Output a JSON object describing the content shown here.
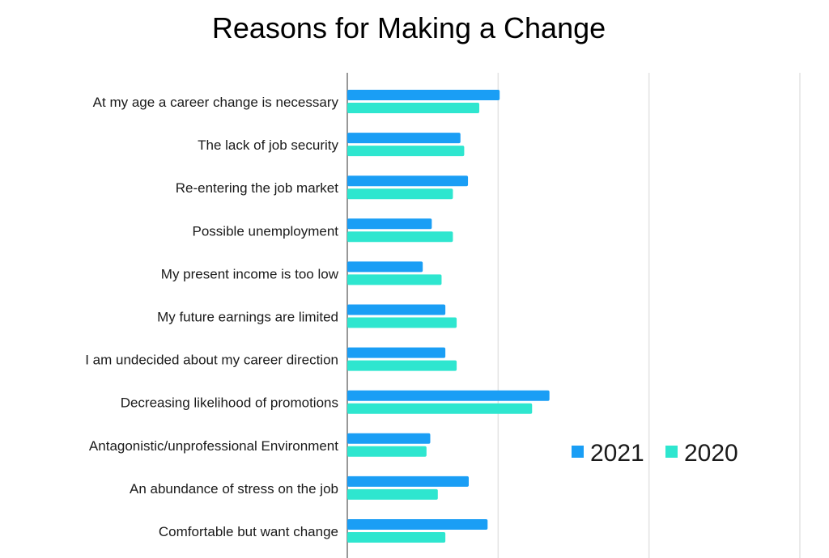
{
  "chart_data": {
    "type": "bar",
    "orientation": "horizontal",
    "title": "Reasons for Making a Change",
    "xlabel": "",
    "ylabel": "",
    "categories": [
      "At my age a career change is necessary",
      "The lack of job security",
      "Re-entering the job market",
      "Possible unemployment",
      "My present income is too low",
      "My future earnings are limited",
      "I am undecided about my career direction",
      "Decreasing likelihood of promotions",
      "Antagonistic/unprofessional Environment",
      "An abundance of stress on the job",
      "Comfortable but want change"
    ],
    "series": [
      {
        "name": "2021",
        "color": "#1a9ef5",
        "values": [
          20.2,
          15.0,
          16.0,
          11.2,
          10.0,
          13.0,
          13.0,
          26.8,
          11.0,
          16.1,
          18.6
        ]
      },
      {
        "name": "2020",
        "color": "#2ee6cf",
        "values": [
          17.5,
          15.5,
          14.0,
          14.0,
          12.5,
          14.5,
          14.5,
          24.5,
          10.5,
          12.0,
          13.0
        ]
      }
    ],
    "xlim": [
      0,
      60
    ],
    "grid": true,
    "legend": "right"
  }
}
